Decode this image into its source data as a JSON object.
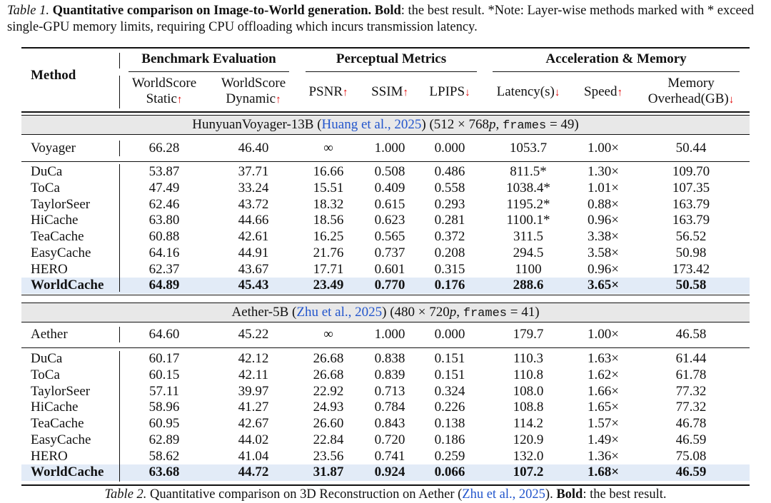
{
  "caption_top": {
    "label": "Table 1.",
    "bold": "Quantitative comparison on Image-to-World generation. Bold",
    "rest": ": the best result. *Note: Layer-wise methods marked with * exceed single-GPU memory limits, requiring CPU offloading which incurs transmission latency."
  },
  "table": {
    "method_header": "Method",
    "groups": [
      "Benchmark Evaluation",
      "Perceptual Metrics",
      "Acceleration & Memory"
    ],
    "columns": [
      {
        "lines": [
          "WorldScore",
          "Static"
        ],
        "arrow": "↑"
      },
      {
        "lines": [
          "WorldScore",
          "Dynamic"
        ],
        "arrow": "↑"
      },
      {
        "lines": [
          "PSNR"
        ],
        "arrow": "↑"
      },
      {
        "lines": [
          "SSIM"
        ],
        "arrow": "↑"
      },
      {
        "lines": [
          "LPIPS"
        ],
        "arrow": "↓"
      },
      {
        "lines": [
          "Latency(s)"
        ],
        "arrow": "↓"
      },
      {
        "lines": [
          "Speed"
        ],
        "arrow": "↑"
      },
      {
        "lines": [
          "Memory",
          "Overhead(GB)"
        ],
        "arrow": "↓"
      }
    ],
    "sections": [
      {
        "title_parts": [
          "HunyuanVoyager-13B (",
          "Huang et al., 2025",
          ") (512 × 768",
          "p",
          ", ",
          "frames",
          " = 49)"
        ],
        "baseline": [
          "Voyager",
          "66.28",
          "46.40",
          "∞",
          "1.000",
          "0.000",
          "1053.7",
          "1.00×",
          "50.44"
        ],
        "rows": [
          [
            "DuCa",
            "53.87",
            "37.71",
            "16.66",
            "0.508",
            "0.486",
            "811.5*",
            "1.30×",
            "109.70"
          ],
          [
            "ToCa",
            "47.49",
            "33.24",
            "15.51",
            "0.409",
            "0.558",
            "1038.4*",
            "1.01×",
            "107.35"
          ],
          [
            "TaylorSeer",
            "62.46",
            "43.72",
            "18.32",
            "0.615",
            "0.293",
            "1195.2*",
            "0.88×",
            "163.79"
          ],
          [
            "HiCache",
            "63.80",
            "44.66",
            "18.56",
            "0.623",
            "0.281",
            "1100.1*",
            "0.96×",
            "163.79"
          ],
          [
            "TeaCache",
            "60.88",
            "42.61",
            "16.25",
            "0.565",
            "0.372",
            "311.5",
            "3.38×",
            "56.52"
          ],
          [
            "EasyCache",
            "64.16",
            "44.91",
            "21.76",
            "0.737",
            "0.208",
            "294.5",
            "3.58×",
            "50.98"
          ],
          [
            "HERO",
            "62.37",
            "43.67",
            "17.71",
            "0.601",
            "0.315",
            "1100",
            "0.96×",
            "173.42"
          ],
          [
            "WorldCache",
            "64.89",
            "45.43",
            "23.49",
            "0.770",
            "0.176",
            "288.6",
            "3.65×",
            "50.58"
          ]
        ]
      },
      {
        "title_parts": [
          "Aether-5B (",
          "Zhu et al., 2025",
          ") (480 × 720",
          "p",
          ", ",
          "frames",
          " = 41)"
        ],
        "baseline": [
          "Aether",
          "64.60",
          "45.22",
          "∞",
          "1.000",
          "0.000",
          "179.7",
          "1.00×",
          "46.58"
        ],
        "rows": [
          [
            "DuCa",
            "60.17",
            "42.12",
            "26.68",
            "0.838",
            "0.151",
            "110.3",
            "1.63×",
            "61.44"
          ],
          [
            "ToCa",
            "60.15",
            "42.11",
            "26.68",
            "0.839",
            "0.151",
            "110.8",
            "1.62×",
            "61.78"
          ],
          [
            "TaylorSeer",
            "57.11",
            "39.97",
            "22.92",
            "0.713",
            "0.324",
            "108.0",
            "1.66×",
            "77.32"
          ],
          [
            "HiCache",
            "58.96",
            "41.27",
            "24.93",
            "0.784",
            "0.226",
            "108.8",
            "1.65×",
            "77.32"
          ],
          [
            "TeaCache",
            "60.95",
            "42.67",
            "26.60",
            "0.843",
            "0.138",
            "114.2",
            "1.57×",
            "46.78"
          ],
          [
            "EasyCache",
            "62.89",
            "44.02",
            "22.84",
            "0.720",
            "0.186",
            "120.9",
            "1.49×",
            "46.59"
          ],
          [
            "HERO",
            "58.62",
            "41.04",
            "23.56",
            "0.741",
            "0.259",
            "132.0",
            "1.36×",
            "75.08"
          ],
          [
            "WorldCache",
            "63.68",
            "44.72",
            "31.87",
            "0.924",
            "0.066",
            "107.2",
            "1.68×",
            "46.59"
          ]
        ]
      }
    ]
  },
  "caption_bottom": {
    "label": "Table 2.",
    "text": " Quantitative comparison on 3D Reconstruction on Aether (",
    "cite": "Zhu et al., 2025",
    "after": "). ",
    "bold": "Bold",
    "rest": ": the best result."
  }
}
